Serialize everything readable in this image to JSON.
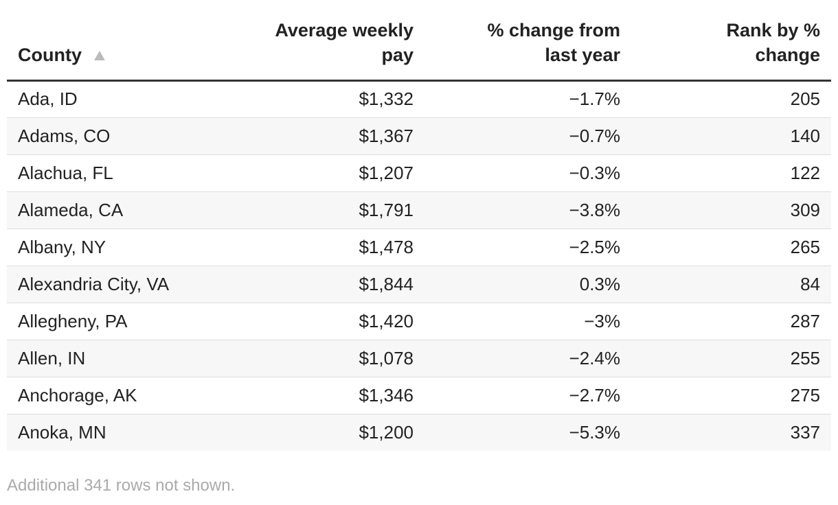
{
  "table": {
    "headers": [
      "County",
      "Average weekly pay",
      "% change from last year",
      "Rank by % change"
    ],
    "rows": [
      [
        "Ada, ID",
        "$1,332",
        "−1.7%",
        "205"
      ],
      [
        "Adams, CO",
        "$1,367",
        "−0.7%",
        "140"
      ],
      [
        "Alachua, FL",
        "$1,207",
        "−0.3%",
        "122"
      ],
      [
        "Alameda, CA",
        "$1,791",
        "−3.8%",
        "309"
      ],
      [
        "Albany, NY",
        "$1,478",
        "−2.5%",
        "265"
      ],
      [
        "Alexandria City, VA",
        "$1,844",
        "0.3%",
        "84"
      ],
      [
        "Allegheny, PA",
        "$1,420",
        "−3%",
        "287"
      ],
      [
        "Allen, IN",
        "$1,078",
        "−2.4%",
        "255"
      ],
      [
        "Anchorage, AK",
        "$1,346",
        "−2.7%",
        "275"
      ],
      [
        "Anoka, MN",
        "$1,200",
        "−5.3%",
        "337"
      ]
    ],
    "footer": "Additional 341 rows not shown."
  }
}
